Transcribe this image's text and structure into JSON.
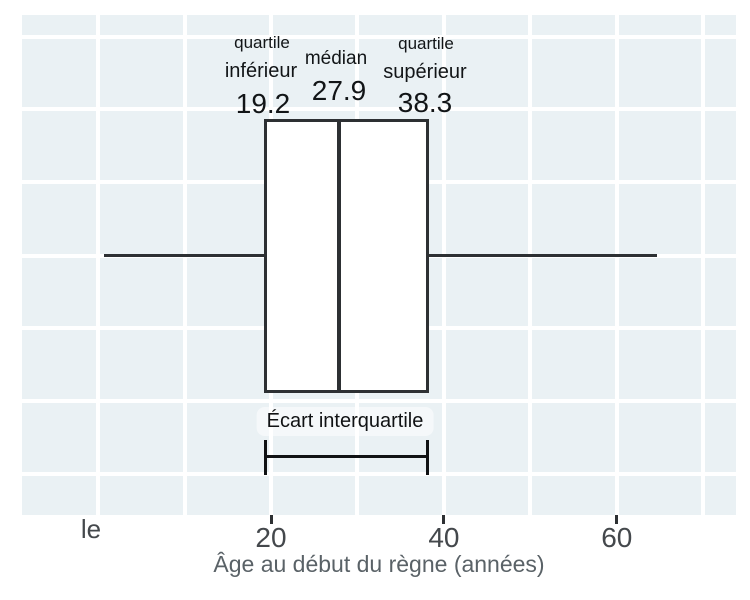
{
  "colors": {
    "panel_bg": "#eaf1f4",
    "gridline": "#ffffff",
    "box_stroke": "#2d3033",
    "box_fill": "#ffffff",
    "bracket": "#101214",
    "annotation_text": "#121517",
    "axis_text": "#44484c",
    "axis_title_text": "#5a6267",
    "figure_bg": "#ffffff"
  },
  "chart_data": {
    "type": "boxplot",
    "orientation": "horizontal",
    "series": [
      {
        "name": "Âge au début du règne",
        "whisker_min": 0.7,
        "q1": 19.2,
        "median": 27.9,
        "q3": 38.3,
        "whisker_max": 64.7
      }
    ],
    "xlabel": "Âge au début du règne (années)",
    "x_ticks": [
      {
        "value": 20,
        "label": "20"
      },
      {
        "value": 40,
        "label": "40"
      },
      {
        "value": 60,
        "label": "60"
      }
    ],
    "x_gridline_values": [
      0,
      10,
      20,
      30,
      40,
      50,
      60,
      70
    ],
    "xlim": [
      -8.8,
      71.8
    ],
    "grid": true,
    "legend": false,
    "annotations": {
      "q1_label_line1": "quartile",
      "q1_label_line2": "inférieur",
      "q1_value": "19.2",
      "median_label": "médian",
      "median_value": "27.9",
      "q3_label_line1": "quartile",
      "q3_label_line2": "supérieur",
      "q3_value": "38.3",
      "iqr_label": "Écart interquartile"
    },
    "misc_axis_label": "le"
  }
}
